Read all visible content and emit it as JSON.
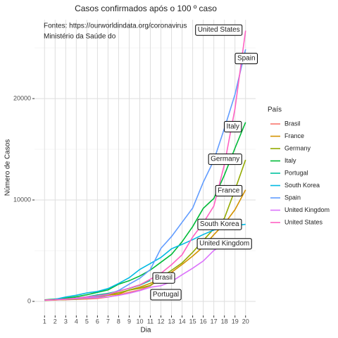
{
  "chart_data": {
    "type": "line",
    "title": "Casos confirmados após o 100 º caso",
    "annotations": [
      "Fontes: https://ourworldindata.org/coronavirus",
      "Ministério da Saúde do"
    ],
    "x_label": "Dia",
    "y_label": "Número de Casos",
    "legend_title": "País",
    "legend_position": "right",
    "grid": true,
    "x": [
      1,
      2,
      3,
      4,
      5,
      6,
      7,
      8,
      9,
      10,
      11,
      12,
      13,
      14,
      15,
      16,
      17,
      18,
      19,
      20
    ],
    "xlim": [
      0.05,
      20.95
    ],
    "xticks": [
      1,
      2,
      3,
      4,
      5,
      6,
      7,
      8,
      9,
      10,
      11,
      12,
      13,
      14,
      15,
      16,
      17,
      18,
      19,
      20
    ],
    "ylim": [
      -1390,
      27780
    ],
    "yticks": [
      0,
      10000,
      20000
    ],
    "series": [
      {
        "name": "Brasil",
        "color": "#F8766D",
        "values": [
          151,
          151,
          162,
          200,
          234,
          291,
          428,
          621,
          904,
          1128,
          1546,
          2250,
          null,
          null,
          null,
          null,
          null,
          null,
          null,
          null
        ]
      },
      {
        "name": "France",
        "color": "#D39200",
        "values": [
          100,
          130,
          191,
          212,
          285,
          423,
          613,
          706,
          1116,
          1402,
          1774,
          2269,
          2860,
          3640,
          4469,
          5380,
          6573,
          7652,
          9043,
          10995
        ]
      },
      {
        "name": "Germany",
        "color": "#93AA00",
        "values": [
          117,
          150,
          188,
          240,
          349,
          534,
          684,
          847,
          1112,
          1296,
          1567,
          2369,
          3062,
          3795,
          4838,
          6012,
          7156,
          8198,
          10999,
          13957
        ]
      },
      {
        "name": "Italy",
        "color": "#00BA38",
        "values": [
          155,
          229,
          322,
          453,
          655,
          888,
          1128,
          1694,
          2036,
          2502,
          3089,
          3858,
          4636,
          5883,
          7375,
          9172,
          10149,
          12462,
          15113,
          17660
        ]
      },
      {
        "name": "Portugal",
        "color": "#00C19F",
        "values": [
          112,
          169,
          245,
          331,
          448,
          642,
          785,
          1020,
          1280,
          1600,
          2060,
          null,
          null,
          null,
          null,
          null,
          null,
          null,
          null,
          null
        ]
      },
      {
        "name": "South Korea",
        "color": "#00B9E3",
        "values": [
          104,
          204,
          433,
          602,
          833,
          977,
          1261,
          1766,
          2337,
          3150,
          3736,
          4335,
          5186,
          5621,
          6088,
          6593,
          7041,
          7314,
          7478,
          7600
        ]
      },
      {
        "name": "Spain",
        "color": "#619CFF",
        "values": [
          120,
          165,
          222,
          259,
          400,
          500,
          673,
          1073,
          1695,
          2277,
          3146,
          5232,
          6391,
          7798,
          9200,
          11748,
          13910,
          17063,
          20410,
          24860
        ]
      },
      {
        "name": "United Kingdom",
        "color": "#DB72FB",
        "values": [
          115,
          163,
          206,
          273,
          321,
          373,
          456,
          590,
          797,
          1061,
          1391,
          1543,
          1950,
          2626,
          3269,
          3983,
          5018,
          5690,
          null,
          null
        ]
      },
      {
        "name": "United States",
        "color": "#FF61C3",
        "values": [
          124,
          158,
          221,
          319,
          435,
          541,
          704,
          994,
          1301,
          1630,
          2183,
          2770,
          3613,
          4596,
          6344,
          7744,
          9400,
          13500,
          19000,
          26700
        ]
      }
    ]
  }
}
